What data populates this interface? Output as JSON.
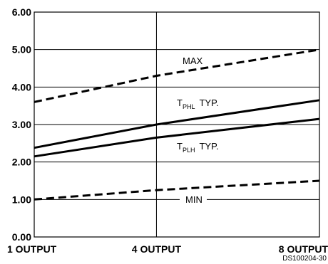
{
  "chart_data": {
    "type": "line",
    "title": "",
    "xlabel": "",
    "ylabel": "",
    "x_categories": [
      "1 OUTPUT",
      "4 OUTPUT",
      "8 OUTPUT"
    ],
    "x_values": [
      1,
      4,
      8
    ],
    "ylim": [
      0,
      6
    ],
    "yticks": [
      "0.00",
      "1.00",
      "2.00",
      "3.00",
      "4.00",
      "5.00",
      "6.00"
    ],
    "grid": true,
    "legend": "none",
    "series": [
      {
        "name": "MAX",
        "style": "dashed",
        "values": [
          3.6,
          4.3,
          5.0
        ]
      },
      {
        "name_main": "T",
        "name_sub": "PHL",
        "name_suffix": "TYP.",
        "style": "solid",
        "values": [
          2.38,
          3.0,
          3.65
        ]
      },
      {
        "name_main": "T",
        "name_sub": "PLH",
        "name_suffix": "TYP.",
        "style": "solid",
        "values": [
          2.15,
          2.65,
          3.15
        ]
      },
      {
        "name": "MIN",
        "style": "dashed",
        "values": [
          1.0,
          1.25,
          1.5
        ]
      }
    ],
    "source_label": "DS100204-30"
  },
  "colors": {
    "line": "#000000",
    "grid": "#000000",
    "background": "#ffffff"
  }
}
